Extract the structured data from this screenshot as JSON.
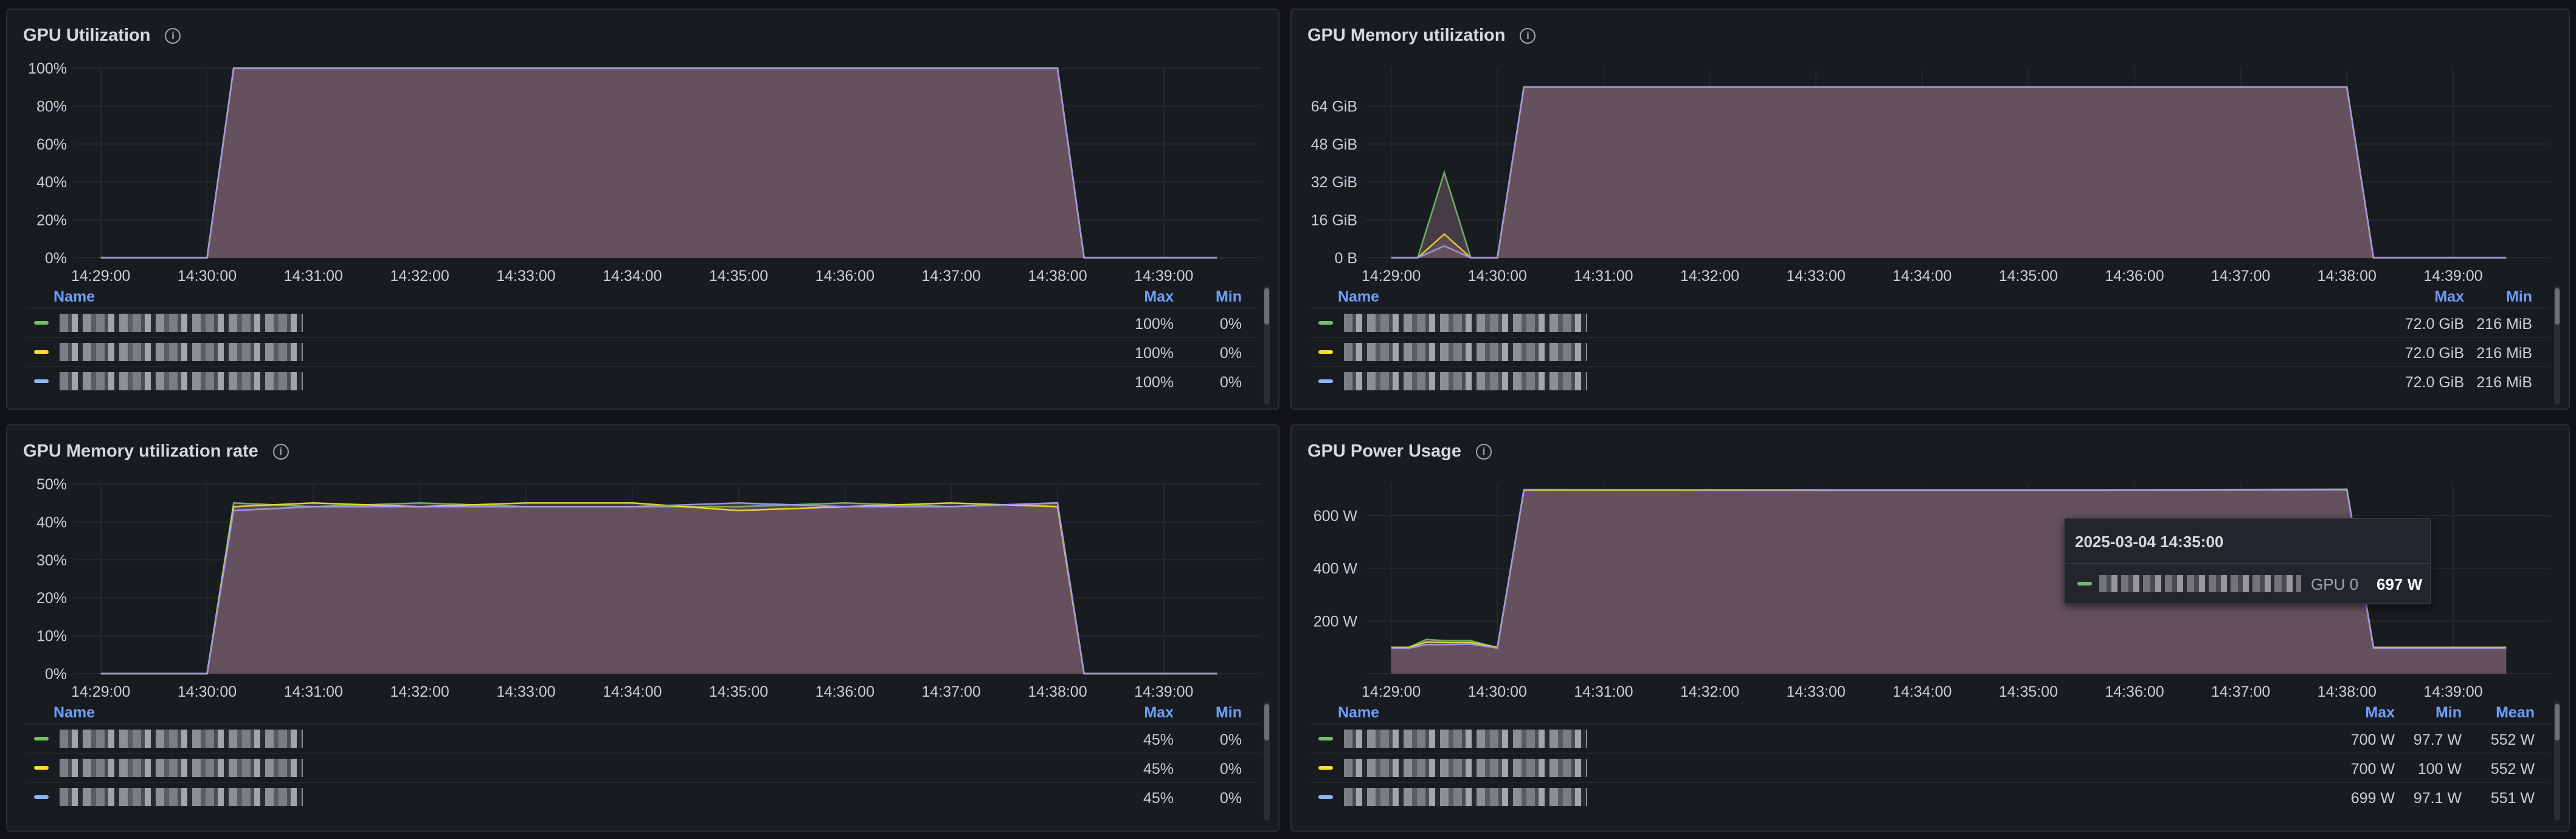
{
  "colors": {
    "green": "#73bf69",
    "yellow": "#fade2a",
    "blue": "#8ab8ff",
    "orange": "#ff9830",
    "red": "#f2495c",
    "purple": "#b877d9",
    "fill": "#6e5865"
  },
  "legend_headers": {
    "name": "Name",
    "max": "Max",
    "min": "Min",
    "mean": "Mean"
  },
  "info_icon": "info-icon",
  "x_ticks": [
    "14:29:00",
    "14:30:00",
    "14:31:00",
    "14:32:00",
    "14:33:00",
    "14:34:00",
    "14:35:00",
    "14:36:00",
    "14:37:00",
    "14:38:00",
    "14:39:00"
  ],
  "panels": [
    {
      "title": "GPU Utilization",
      "legend": [
        {
          "max": "100%",
          "min": "0%"
        },
        {
          "max": "100%",
          "min": "0%"
        },
        {
          "max": "100%",
          "min": "0%"
        }
      ]
    },
    {
      "title": "GPU Memory utilization",
      "legend": [
        {
          "max": "72.0 GiB",
          "min": "216 MiB"
        },
        {
          "max": "72.0 GiB",
          "min": "216 MiB"
        },
        {
          "max": "72.0 GiB",
          "min": "216 MiB"
        }
      ]
    },
    {
      "title": "GPU Memory utilization rate",
      "legend": [
        {
          "max": "45%",
          "min": "0%"
        },
        {
          "max": "45%",
          "min": "0%"
        },
        {
          "max": "45%",
          "min": "0%"
        }
      ]
    },
    {
      "title": "GPU Power Usage",
      "legend": [
        {
          "max": "700 W",
          "min": "97.7 W",
          "mean": "552 W"
        },
        {
          "max": "700 W",
          "min": "100 W",
          "mean": "552 W"
        },
        {
          "max": "699 W",
          "min": "97.1 W",
          "mean": "551 W"
        }
      ]
    }
  ],
  "tooltip": {
    "time": "2025-03-04 14:35:00",
    "series": "GPU 0",
    "value": "697 W"
  },
  "chart_data": [
    {
      "type": "area",
      "title": "GPU Utilization",
      "x": [
        "14:29:00",
        "14:30:00",
        "14:30:15",
        "14:38:00",
        "14:38:15",
        "14:39:00",
        "14:39:30"
      ],
      "ylim": [
        0,
        100
      ],
      "y_ticks": [
        "0%",
        "20%",
        "40%",
        "60%",
        "80%",
        "100%"
      ],
      "series": [
        {
          "values": [
            0,
            0,
            100,
            100,
            0,
            0,
            0
          ]
        },
        {
          "values": [
            0,
            0,
            100,
            100,
            0,
            0,
            0
          ]
        },
        {
          "values": [
            0,
            0,
            100,
            100,
            0,
            0,
            0
          ]
        }
      ]
    },
    {
      "type": "area",
      "title": "GPU Memory utilization",
      "x": [
        "14:29:00",
        "14:29:15",
        "14:29:30",
        "14:29:45",
        "14:30:00",
        "14:30:15",
        "14:38:00",
        "14:38:15",
        "14:39:00",
        "14:39:30"
      ],
      "ylim": [
        0,
        80
      ],
      "y_ticks": [
        "0 B",
        "16 GiB",
        "32 GiB",
        "48 GiB",
        "64 GiB"
      ],
      "series": [
        {
          "values": [
            0,
            0,
            36,
            0,
            0,
            72,
            72,
            0,
            0,
            0
          ]
        },
        {
          "values": [
            0,
            0,
            10,
            0,
            0,
            72,
            72,
            0,
            0,
            0
          ]
        },
        {
          "values": [
            0,
            0,
            5,
            0,
            0,
            72,
            72,
            0,
            0,
            0
          ]
        }
      ]
    },
    {
      "type": "area",
      "title": "GPU Memory utilization rate",
      "x": [
        "14:29:00",
        "14:30:00",
        "14:30:15",
        "14:31:00",
        "14:32:00",
        "14:33:00",
        "14:34:00",
        "14:35:00",
        "14:36:00",
        "14:37:00",
        "14:38:00",
        "14:38:15",
        "14:39:00",
        "14:39:30"
      ],
      "ylim": [
        0,
        50
      ],
      "y_ticks": [
        "0%",
        "10%",
        "20%",
        "30%",
        "40%",
        "50%"
      ],
      "series": [
        {
          "values": [
            0,
            0,
            45,
            44,
            45,
            44,
            44,
            44,
            45,
            44,
            45,
            0,
            0,
            0
          ]
        },
        {
          "values": [
            0,
            0,
            44,
            45,
            44,
            45,
            45,
            43,
            44,
            45,
            44,
            0,
            0,
            0
          ]
        },
        {
          "values": [
            0,
            0,
            43,
            44,
            44,
            44,
            44,
            45,
            44,
            44,
            45,
            0,
            0,
            0
          ]
        }
      ]
    },
    {
      "type": "area",
      "title": "GPU Power Usage",
      "x": [
        "14:29:00",
        "14:29:10",
        "14:29:20",
        "14:29:30",
        "14:29:45",
        "14:30:00",
        "14:30:15",
        "14:35:00",
        "14:38:00",
        "14:38:15",
        "14:39:00",
        "14:39:30"
      ],
      "ylim": [
        0,
        720
      ],
      "y_ticks": [
        "",
        "200 W",
        "400 W",
        "600 W"
      ],
      "series": [
        {
          "values": [
            100,
            100,
            130,
            125,
            125,
            98,
            697,
            697,
            700,
            98,
            98,
            98
          ]
        },
        {
          "values": [
            100,
            100,
            120,
            118,
            118,
            100,
            697,
            695,
            699,
            100,
            100,
            100
          ]
        },
        {
          "values": [
            97,
            97,
            110,
            110,
            112,
            97,
            699,
            697,
            698,
            97,
            97,
            97
          ]
        }
      ]
    }
  ]
}
